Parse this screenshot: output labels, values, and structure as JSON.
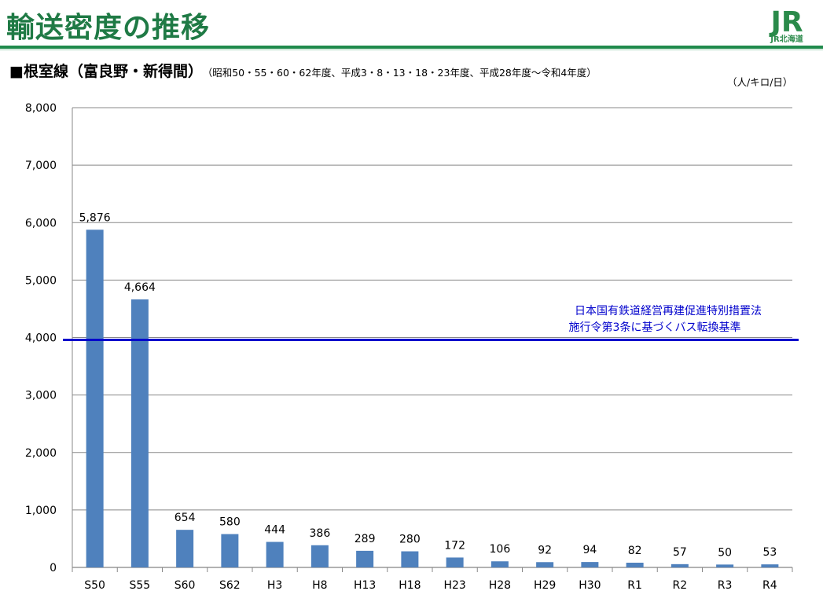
{
  "header": {
    "title": "輸送密度の推移",
    "logo_mark": "JR",
    "logo_sub": "JR北海道"
  },
  "subtitle": {
    "main": "■根室線（富良野・新得間）",
    "sub": "（昭和50・55・60・62年度、平成3・8・13・18・23年度、平成28年度～令和4年度）"
  },
  "unit": "（人/キロ/日）",
  "colors": {
    "title": "#1f7a45",
    "bar": "#4f81bd",
    "threshold": "#0000cc",
    "grid": "#888888"
  },
  "chart_data": {
    "type": "bar",
    "title": "輸送密度の推移",
    "ylabel": "（人/キロ/日）",
    "xlabel": "",
    "categories": [
      "S50",
      "S55",
      "S60",
      "S62",
      "H3",
      "H8",
      "H13",
      "H18",
      "H23",
      "H28",
      "H29",
      "H30",
      "R1",
      "R2",
      "R3",
      "R4"
    ],
    "values": [
      5876,
      4664,
      654,
      580,
      444,
      386,
      289,
      280,
      172,
      106,
      92,
      94,
      82,
      57,
      50,
      53
    ],
    "value_labels": [
      "5,876",
      "4,664",
      "654",
      "580",
      "444",
      "386",
      "289",
      "280",
      "172",
      "106",
      "92",
      "94",
      "82",
      "57",
      "50",
      "53"
    ],
    "ylim": [
      0,
      8000
    ],
    "yticks": [
      0,
      1000,
      2000,
      3000,
      4000,
      5000,
      6000,
      7000,
      8000
    ],
    "ytick_labels": [
      "0",
      "1,000",
      "2,000",
      "3,000",
      "4,000",
      "5,000",
      "6,000",
      "7,000",
      "8,000"
    ],
    "grid": true,
    "reference_line": {
      "value": 4000,
      "label_line1": "日本国有鉄道経営再建促進特別措置法",
      "label_line2": "施行令第3条に基づくバス転換基準"
    }
  }
}
